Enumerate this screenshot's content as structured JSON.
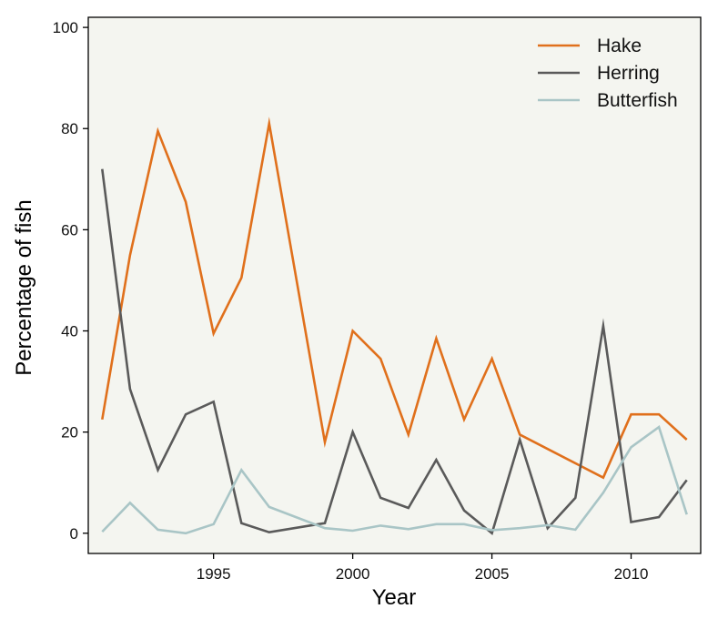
{
  "chart_data": {
    "type": "line",
    "title": "",
    "xlabel": "Year",
    "ylabel": "Percentage of fish",
    "xlim": [
      1990.5,
      2012.5
    ],
    "ylim": [
      -4,
      102
    ],
    "xticks": [
      1995,
      2000,
      2005,
      2010
    ],
    "yticks": [
      0,
      20,
      40,
      60,
      80,
      100
    ],
    "x": [
      1991,
      1992,
      1993,
      1994,
      1995,
      1996,
      1997,
      1998,
      1999,
      2000,
      2001,
      2002,
      2003,
      2004,
      2005,
      2006,
      2007,
      2008,
      2009,
      2010,
      2011,
      2012
    ],
    "series": [
      {
        "name": "Hake",
        "color": "#e0701c",
        "values": [
          22.5,
          55,
          79.5,
          65.5,
          39.5,
          50.5,
          81,
          null,
          18,
          40,
          34.5,
          19.5,
          38.5,
          22.5,
          34.5,
          19.5,
          null,
          null,
          11,
          23.5,
          23.5,
          18.5
        ]
      },
      {
        "name": "Herring",
        "color": "#5a5a5a",
        "values": [
          72,
          28.5,
          12.5,
          23.5,
          26,
          2,
          0.2,
          null,
          2,
          20,
          7,
          5,
          14.5,
          4.5,
          0,
          18.5,
          1,
          7,
          41,
          2.2,
          3.2,
          10.5
        ]
      },
      {
        "name": "Butterfish",
        "color": "#a9c5c6",
        "values": [
          0.3,
          6,
          0.7,
          0,
          1.8,
          12.5,
          5.2,
          null,
          1,
          0.5,
          1.5,
          0.8,
          1.8,
          1.8,
          0.6,
          1,
          1.6,
          0.7,
          8,
          17,
          21,
          3.7
        ]
      }
    ],
    "grid": false,
    "legend_position": "top-right",
    "background_color": "#f4f5f0"
  }
}
